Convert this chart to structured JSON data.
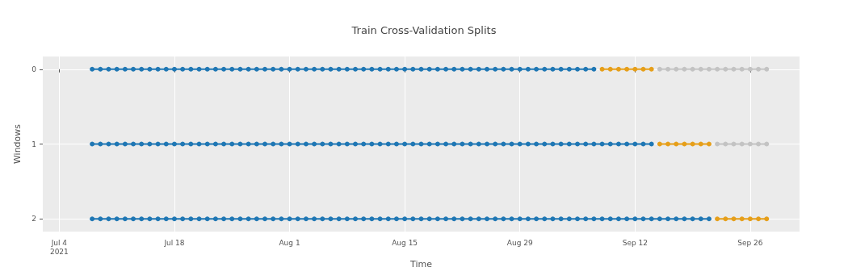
{
  "chart_data": {
    "type": "line",
    "title": "Train Cross-Validation Splits",
    "xlabel": "Time",
    "ylabel": "Windows",
    "marker": "circle",
    "line_style": "solid",
    "grid": true,
    "xlim": [
      "2021-07-02",
      "2021-10-02"
    ],
    "xticks": [
      {
        "value": "2021-07-04",
        "label": "Jul 4\n2021"
      },
      {
        "value": "2021-07-18",
        "label": "Jul 18"
      },
      {
        "value": "2021-08-01",
        "label": "Aug 1"
      },
      {
        "value": "2021-08-15",
        "label": "Aug 15"
      },
      {
        "value": "2021-08-29",
        "label": "Aug 29"
      },
      {
        "value": "2021-09-12",
        "label": "Sep 12"
      },
      {
        "value": "2021-09-26",
        "label": "Sep 26"
      }
    ],
    "ylim": [
      2.17,
      -0.17
    ],
    "yticks": [
      0,
      1,
      2
    ],
    "series": [
      {
        "color": "#1f77b4",
        "x": [
          "2021-07-08",
          "2021-07-09",
          "2021-07-10",
          "2021-07-11",
          "2021-07-12",
          "2021-07-13",
          "2021-07-14",
          "2021-07-15",
          "2021-07-16",
          "2021-07-17",
          "2021-07-18",
          "2021-07-19",
          "2021-07-20",
          "2021-07-21",
          "2021-07-22",
          "2021-07-23",
          "2021-07-24",
          "2021-07-25",
          "2021-07-26",
          "2021-07-27",
          "2021-07-28",
          "2021-07-29",
          "2021-07-30",
          "2021-07-31",
          "2021-08-01",
          "2021-08-02",
          "2021-08-03",
          "2021-08-04",
          "2021-08-05",
          "2021-08-06",
          "2021-08-07",
          "2021-08-08",
          "2021-08-09",
          "2021-08-10",
          "2021-08-11",
          "2021-08-12",
          "2021-08-13",
          "2021-08-14",
          "2021-08-15",
          "2021-08-16",
          "2021-08-17",
          "2021-08-18",
          "2021-08-19",
          "2021-08-20",
          "2021-08-21",
          "2021-08-22",
          "2021-08-23",
          "2021-08-24",
          "2021-08-25",
          "2021-08-26",
          "2021-08-27",
          "2021-08-28",
          "2021-08-29",
          "2021-08-30",
          "2021-08-31",
          "2021-09-01",
          "2021-09-02",
          "2021-09-03",
          "2021-09-04",
          "2021-09-05",
          "2021-09-06",
          "2021-09-07"
        ],
        "values": [
          0,
          0,
          0,
          0,
          0,
          0,
          0,
          0,
          0,
          0,
          0,
          0,
          0,
          0,
          0,
          0,
          0,
          0,
          0,
          0,
          0,
          0,
          0,
          0,
          0,
          0,
          0,
          0,
          0,
          0,
          0,
          0,
          0,
          0,
          0,
          0,
          0,
          0,
          0,
          0,
          0,
          0,
          0,
          0,
          0,
          0,
          0,
          0,
          0,
          0,
          0,
          0,
          0,
          0,
          0,
          0,
          0,
          0,
          0,
          0,
          0,
          0
        ]
      },
      {
        "color": "#e69f1a",
        "x": [
          "2021-09-08",
          "2021-09-09",
          "2021-09-10",
          "2021-09-11",
          "2021-09-12",
          "2021-09-13",
          "2021-09-14"
        ],
        "values": [
          0,
          0,
          0,
          0,
          0,
          0,
          0
        ]
      },
      {
        "color": "#c3c3c3",
        "x": [
          "2021-09-15",
          "2021-09-16",
          "2021-09-17",
          "2021-09-18",
          "2021-09-19",
          "2021-09-20",
          "2021-09-21",
          "2021-09-22",
          "2021-09-23",
          "2021-09-24",
          "2021-09-25",
          "2021-09-26",
          "2021-09-27",
          "2021-09-28"
        ],
        "values": [
          0,
          0,
          0,
          0,
          0,
          0,
          0,
          0,
          0,
          0,
          0,
          0,
          0,
          0
        ]
      },
      {
        "color": "#1f77b4",
        "x": [
          "2021-07-08",
          "2021-07-09",
          "2021-07-10",
          "2021-07-11",
          "2021-07-12",
          "2021-07-13",
          "2021-07-14",
          "2021-07-15",
          "2021-07-16",
          "2021-07-17",
          "2021-07-18",
          "2021-07-19",
          "2021-07-20",
          "2021-07-21",
          "2021-07-22",
          "2021-07-23",
          "2021-07-24",
          "2021-07-25",
          "2021-07-26",
          "2021-07-27",
          "2021-07-28",
          "2021-07-29",
          "2021-07-30",
          "2021-07-31",
          "2021-08-01",
          "2021-08-02",
          "2021-08-03",
          "2021-08-04",
          "2021-08-05",
          "2021-08-06",
          "2021-08-07",
          "2021-08-08",
          "2021-08-09",
          "2021-08-10",
          "2021-08-11",
          "2021-08-12",
          "2021-08-13",
          "2021-08-14",
          "2021-08-15",
          "2021-08-16",
          "2021-08-17",
          "2021-08-18",
          "2021-08-19",
          "2021-08-20",
          "2021-08-21",
          "2021-08-22",
          "2021-08-23",
          "2021-08-24",
          "2021-08-25",
          "2021-08-26",
          "2021-08-27",
          "2021-08-28",
          "2021-08-29",
          "2021-08-30",
          "2021-08-31",
          "2021-09-01",
          "2021-09-02",
          "2021-09-03",
          "2021-09-04",
          "2021-09-05",
          "2021-09-06",
          "2021-09-07",
          "2021-09-08",
          "2021-09-09",
          "2021-09-10",
          "2021-09-11",
          "2021-09-12",
          "2021-09-13",
          "2021-09-14"
        ],
        "values": [
          1,
          1,
          1,
          1,
          1,
          1,
          1,
          1,
          1,
          1,
          1,
          1,
          1,
          1,
          1,
          1,
          1,
          1,
          1,
          1,
          1,
          1,
          1,
          1,
          1,
          1,
          1,
          1,
          1,
          1,
          1,
          1,
          1,
          1,
          1,
          1,
          1,
          1,
          1,
          1,
          1,
          1,
          1,
          1,
          1,
          1,
          1,
          1,
          1,
          1,
          1,
          1,
          1,
          1,
          1,
          1,
          1,
          1,
          1,
          1,
          1,
          1,
          1,
          1,
          1,
          1,
          1,
          1,
          1
        ]
      },
      {
        "color": "#e69f1a",
        "x": [
          "2021-09-15",
          "2021-09-16",
          "2021-09-17",
          "2021-09-18",
          "2021-09-19",
          "2021-09-20",
          "2021-09-21"
        ],
        "values": [
          1,
          1,
          1,
          1,
          1,
          1,
          1
        ]
      },
      {
        "color": "#c3c3c3",
        "x": [
          "2021-09-22",
          "2021-09-23",
          "2021-09-24",
          "2021-09-25",
          "2021-09-26",
          "2021-09-27",
          "2021-09-28"
        ],
        "values": [
          1,
          1,
          1,
          1,
          1,
          1,
          1
        ]
      },
      {
        "color": "#1f77b4",
        "x": [
          "2021-07-08",
          "2021-07-09",
          "2021-07-10",
          "2021-07-11",
          "2021-07-12",
          "2021-07-13",
          "2021-07-14",
          "2021-07-15",
          "2021-07-16",
          "2021-07-17",
          "2021-07-18",
          "2021-07-19",
          "2021-07-20",
          "2021-07-21",
          "2021-07-22",
          "2021-07-23",
          "2021-07-24",
          "2021-07-25",
          "2021-07-26",
          "2021-07-27",
          "2021-07-28",
          "2021-07-29",
          "2021-07-30",
          "2021-07-31",
          "2021-08-01",
          "2021-08-02",
          "2021-08-03",
          "2021-08-04",
          "2021-08-05",
          "2021-08-06",
          "2021-08-07",
          "2021-08-08",
          "2021-08-09",
          "2021-08-10",
          "2021-08-11",
          "2021-08-12",
          "2021-08-13",
          "2021-08-14",
          "2021-08-15",
          "2021-08-16",
          "2021-08-17",
          "2021-08-18",
          "2021-08-19",
          "2021-08-20",
          "2021-08-21",
          "2021-08-22",
          "2021-08-23",
          "2021-08-24",
          "2021-08-25",
          "2021-08-26",
          "2021-08-27",
          "2021-08-28",
          "2021-08-29",
          "2021-08-30",
          "2021-08-31",
          "2021-09-01",
          "2021-09-02",
          "2021-09-03",
          "2021-09-04",
          "2021-09-05",
          "2021-09-06",
          "2021-09-07",
          "2021-09-08",
          "2021-09-09",
          "2021-09-10",
          "2021-09-11",
          "2021-09-12",
          "2021-09-13",
          "2021-09-14",
          "2021-09-15",
          "2021-09-16",
          "2021-09-17",
          "2021-09-18",
          "2021-09-19",
          "2021-09-20",
          "2021-09-21"
        ],
        "values": [
          2,
          2,
          2,
          2,
          2,
          2,
          2,
          2,
          2,
          2,
          2,
          2,
          2,
          2,
          2,
          2,
          2,
          2,
          2,
          2,
          2,
          2,
          2,
          2,
          2,
          2,
          2,
          2,
          2,
          2,
          2,
          2,
          2,
          2,
          2,
          2,
          2,
          2,
          2,
          2,
          2,
          2,
          2,
          2,
          2,
          2,
          2,
          2,
          2,
          2,
          2,
          2,
          2,
          2,
          2,
          2,
          2,
          2,
          2,
          2,
          2,
          2,
          2,
          2,
          2,
          2,
          2,
          2,
          2,
          2,
          2,
          2,
          2,
          2,
          2,
          2
        ]
      },
      {
        "color": "#e69f1a",
        "x": [
          "2021-09-22",
          "2021-09-23",
          "2021-09-24",
          "2021-09-25",
          "2021-09-26",
          "2021-09-27",
          "2021-09-28"
        ],
        "values": [
          2,
          2,
          2,
          2,
          2,
          2,
          2
        ]
      }
    ]
  }
}
